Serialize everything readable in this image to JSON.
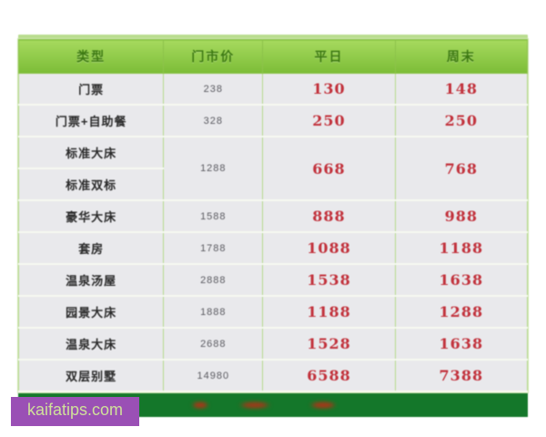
{
  "watermark": {
    "text": "kaifatips.com",
    "bg_color": "#9a50b5",
    "text_color": "#cfe09a"
  },
  "colors": {
    "header_green": "#8cc24a",
    "header_text_green": "#3d7a12",
    "row_bg": "#e9e9ec",
    "price_red": "#c2323c",
    "footer_dark_green": "#14772a",
    "top_strip_green": "#b9dd8f"
  },
  "table": {
    "header": {
      "type": "类型",
      "list_price": "门市价",
      "weekday": "平日",
      "weekend": "周末"
    }
  },
  "chart_data": {
    "type": "table",
    "title": "",
    "columns": [
      "类型",
      "门市价",
      "平日",
      "周末"
    ],
    "rows": [
      {
        "label": "门票",
        "list": "238",
        "weekday": "130",
        "weekend": "148"
      },
      {
        "label": "门票+自助餐",
        "list": "328",
        "weekday": "250",
        "weekend": "250"
      },
      {
        "label": "标准大床",
        "list": "1288",
        "weekday": "668",
        "weekend": "768",
        "rowspan": 2
      },
      {
        "label": "标准双标",
        "merged_into_above": true
      },
      {
        "label": "豪华大床",
        "list": "1588",
        "weekday": "888",
        "weekend": "988"
      },
      {
        "label": "套房",
        "list": "1788",
        "weekday": "1088",
        "weekend": "1188"
      },
      {
        "label": "温泉汤屋",
        "list": "2888",
        "weekday": "1538",
        "weekend": "1638"
      },
      {
        "label": "园景大床",
        "list": "1888",
        "weekday": "1188",
        "weekend": "1288"
      },
      {
        "label": "温泉大床",
        "list": "2688",
        "weekday": "1528",
        "weekend": "1638"
      },
      {
        "label": "双层别墅",
        "list": "14980",
        "weekday": "6588",
        "weekend": "7388"
      }
    ],
    "notes": "footer bar contains small illegible red text; watermark kaifatips.com bottom-left"
  }
}
